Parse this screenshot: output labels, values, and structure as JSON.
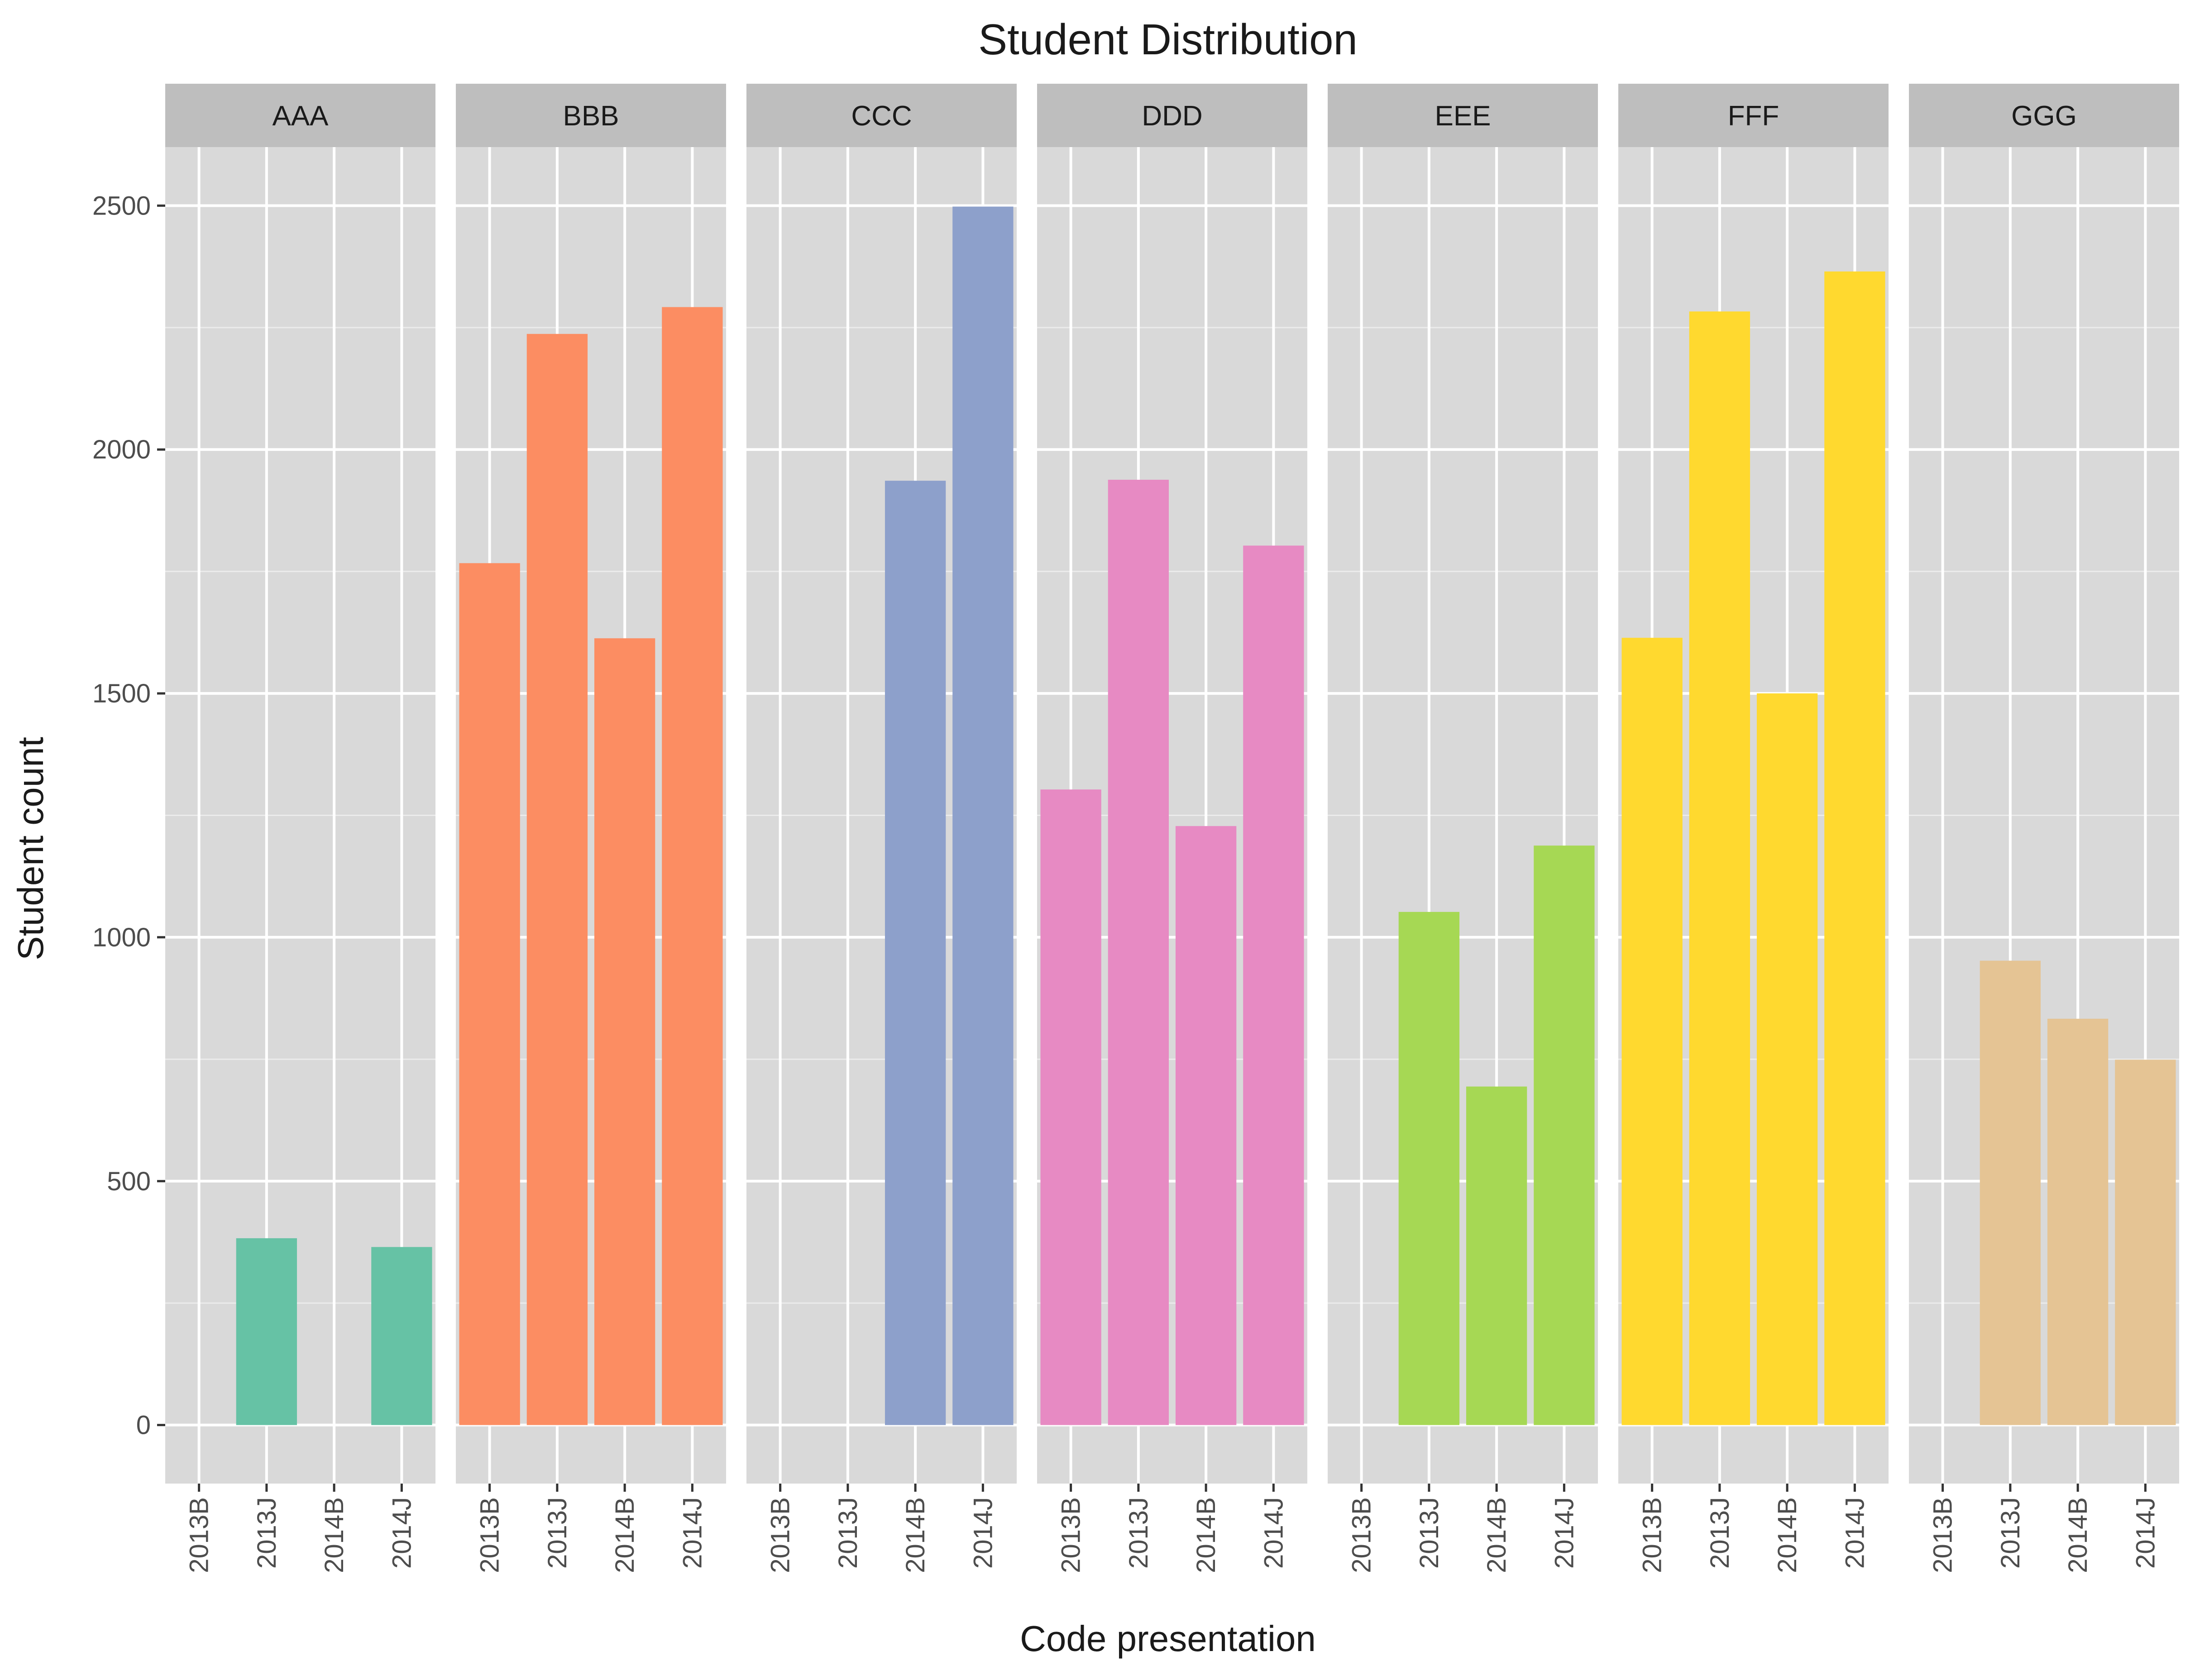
{
  "chart_data": {
    "type": "bar",
    "title": "Student Distribution",
    "xlabel": "Code presentation",
    "ylabel": "Student count",
    "ylim": [
      -120,
      2620
    ],
    "y_ticks": [
      0,
      500,
      1000,
      1500,
      2000,
      2500
    ],
    "y_tick_labels": [
      "0",
      "500",
      "1000",
      "1500",
      "2000",
      "2500"
    ],
    "categories": [
      "2013B",
      "2013J",
      "2014B",
      "2014J"
    ],
    "grid": true,
    "facets": [
      {
        "name": "AAA",
        "color": "#66C2A5",
        "values": [
          0,
          383,
          0,
          365
        ]
      },
      {
        "name": "BBB",
        "color": "#FC8D62",
        "values": [
          1767,
          2237,
          1613,
          2292
        ]
      },
      {
        "name": "CCC",
        "color": "#8DA0CB",
        "values": [
          0,
          0,
          1936,
          2498
        ]
      },
      {
        "name": "DDD",
        "color": "#E78AC3",
        "values": [
          1303,
          1938,
          1228,
          1803
        ]
      },
      {
        "name": "EEE",
        "color": "#A6D854",
        "values": [
          0,
          1052,
          694,
          1188
        ]
      },
      {
        "name": "FFF",
        "color": "#FFD92F",
        "values": [
          1614,
          2283,
          1500,
          2365
        ]
      },
      {
        "name": "GGG",
        "color": "#E5C494",
        "values": [
          0,
          952,
          833,
          749
        ]
      }
    ]
  },
  "colors": {
    "panel_background": "#D9D9D9",
    "strip_background": "#BEBEBE",
    "grid_major": "#FFFFFF",
    "grid_minor": "#EBEBEB"
  }
}
